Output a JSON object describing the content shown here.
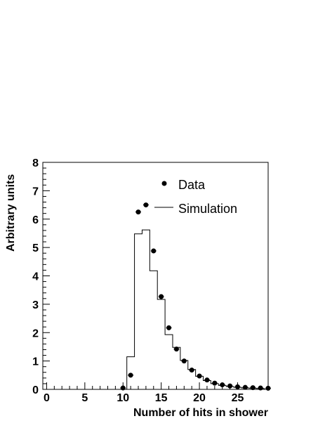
{
  "chart_data": {
    "type": "scatter",
    "xlabel": "Number of hits in shower",
    "ylabel": "Arbitrary units",
    "xlim": [
      -0.5,
      29
    ],
    "ylim": [
      0,
      8
    ],
    "xticks": [
      0,
      5,
      10,
      15,
      20,
      25
    ],
    "yticks": [
      0,
      1,
      2,
      3,
      4,
      5,
      6,
      7,
      8
    ],
    "legend_position": "top-center",
    "series": [
      {
        "name": "Data",
        "style": "markers",
        "x": [
          10,
          11,
          12,
          13,
          14,
          15,
          16,
          17,
          18,
          19,
          20,
          21,
          22,
          23,
          24,
          25,
          26,
          27,
          28,
          29
        ],
        "y": [
          0.05,
          0.5,
          6.25,
          6.5,
          4.88,
          3.27,
          2.17,
          1.42,
          1.0,
          0.68,
          0.47,
          0.33,
          0.22,
          0.16,
          0.12,
          0.09,
          0.07,
          0.06,
          0.05,
          0.04
        ]
      },
      {
        "name": "Simulation",
        "style": "step-histogram",
        "bin_edges": [
          10.5,
          11.5,
          12.5,
          13.5,
          14.5,
          15.5,
          16.5,
          17.5,
          18.5,
          19.5,
          20.5,
          21.5,
          22.5,
          23.5,
          24.5,
          25.5,
          26.5,
          27.5,
          28.5
        ],
        "values": [
          1.15,
          5.48,
          5.62,
          4.18,
          3.17,
          1.93,
          1.48,
          1.02,
          0.7,
          0.46,
          0.31,
          0.2,
          0.14,
          0.1,
          0.07,
          0.05,
          0.04,
          0.03
        ]
      }
    ]
  }
}
